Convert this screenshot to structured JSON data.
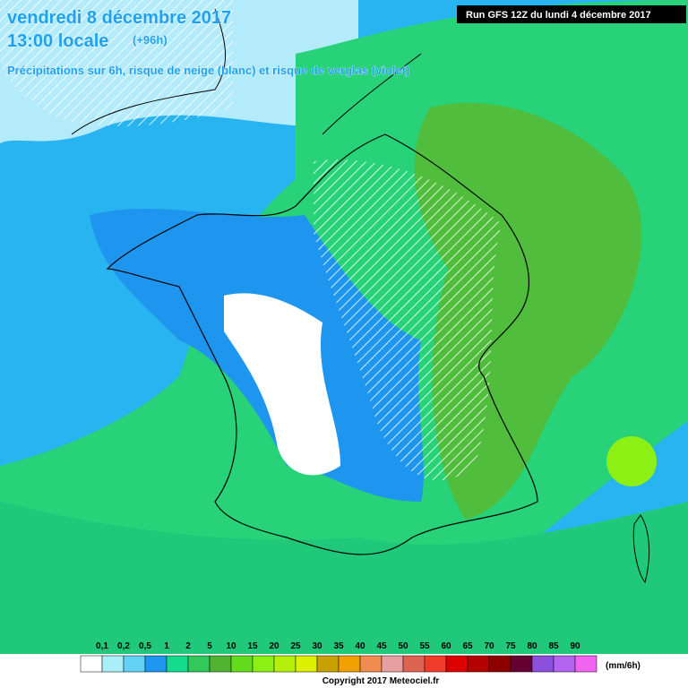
{
  "header": {
    "date": "vendredi 8 décembre 2017",
    "time": "13:00 locale",
    "lead": "(+96h)",
    "subtitle": "Précipitations sur 6h, risque de neige (blanc) et risque de verglas (violet)",
    "run": "Run GFS 12Z du lundi 4 décembre 2017"
  },
  "legend": {
    "labels": [
      "0,1",
      "0,2",
      "0,5",
      "1",
      "2",
      "5",
      "10",
      "15",
      "20",
      "25",
      "30",
      "35",
      "40",
      "45",
      "50",
      "55",
      "60",
      "65",
      "70",
      "75",
      "80",
      "85",
      "90"
    ],
    "colors": [
      "#ffffff",
      "#aaeefa",
      "#64d2f5",
      "#1e96f0",
      "#14dc8c",
      "#32c85a",
      "#50b432",
      "#64dc1e",
      "#8cf014",
      "#b4f00a",
      "#dcf000",
      "#c8a000",
      "#f0a000",
      "#f08c50",
      "#e6a0a0",
      "#dc6450",
      "#f03c28",
      "#dc0000",
      "#b40000",
      "#8c0000",
      "#640032",
      "#8c50dc",
      "#b464f0",
      "#f064f0"
    ],
    "unit": "(mm/6h)"
  },
  "footer": {
    "copyright": "Copyright 2017 Meteociel.fr"
  }
}
